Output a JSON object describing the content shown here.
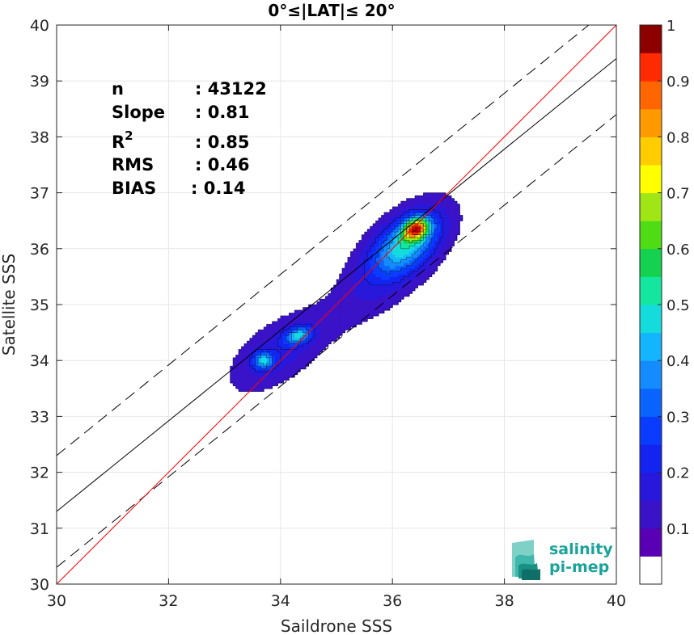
{
  "chart_data": {
    "type": "heatmap",
    "title": "0°≤|LAT|≤ 20°",
    "xlabel": "Saildrone SSS",
    "ylabel": "Satellite SSS",
    "xlim": [
      30,
      40
    ],
    "ylim": [
      30,
      40
    ],
    "xticks": [
      "30",
      "32",
      "34",
      "36",
      "38",
      "40"
    ],
    "yticks": [
      "30",
      "31",
      "32",
      "33",
      "34",
      "35",
      "36",
      "37",
      "38",
      "39",
      "40"
    ],
    "grid": true,
    "stats": {
      "n_label": "n",
      "n_value": ": 43122",
      "slope_label": "Slope",
      "slope_value": ": 0.81",
      "r2_label": "R",
      "r2_sup": "2",
      "r2_value": ": 0.85",
      "rms_label": "RMS",
      "rms_value": ": 0.46",
      "bias_label": "BIAS",
      "bias_value": ": 0.14"
    },
    "lines": {
      "identity": {
        "slope": 1.0,
        "intercept": 0.0,
        "color": "#ff0000"
      },
      "fit": {
        "slope": 0.81,
        "intercept": 7.0,
        "color": "#000000"
      },
      "upper_bound": {
        "slope": 0.81,
        "intercept": 8.0,
        "color": "#000000",
        "style": "dashed"
      },
      "lower_bound": {
        "slope": 0.81,
        "intercept": 6.0,
        "color": "#000000",
        "style": "dashed"
      }
    },
    "density_blobs": [
      {
        "cx": 36.2,
        "cy": 35.9,
        "rx": 0.72,
        "ry": 1.25,
        "angle_deg": 40
      },
      {
        "cx": 34.0,
        "cy": 34.15,
        "rx": 0.55,
        "ry": 0.95,
        "angle_deg": 40
      }
    ],
    "density_peaks": [
      {
        "x": 36.4,
        "y": 36.35,
        "level": 1.0
      },
      {
        "x": 34.35,
        "y": 34.45,
        "level": 0.45
      },
      {
        "x": 33.7,
        "y": 34.0,
        "level": 0.45
      }
    ],
    "colorbar": {
      "range": [
        0,
        1
      ],
      "ticks": [
        "0.1",
        "0.2",
        "0.3",
        "0.4",
        "0.5",
        "0.6",
        "0.7",
        "0.8",
        "0.9",
        "1"
      ],
      "levels": [
        0.05,
        0.1,
        0.15,
        0.2,
        0.25,
        0.3,
        0.35,
        0.4,
        0.45,
        0.5,
        0.55,
        0.6,
        0.65,
        0.7,
        0.75,
        0.8,
        0.85,
        0.9,
        0.95
      ],
      "colors": [
        "#5a00b4",
        "#3a12c8",
        "#2818dc",
        "#1424f0",
        "#0a3cff",
        "#0a64ff",
        "#148cff",
        "#14b4ff",
        "#14dcdc",
        "#14e6a0",
        "#14d250",
        "#50dc14",
        "#a0e614",
        "#ffff00",
        "#ffcc00",
        "#ff9900",
        "#ff6600",
        "#ff2a00",
        "#e00000",
        "#8c0000"
      ]
    }
  },
  "logo": {
    "line1": "salinity",
    "line2": "pi-mep",
    "color": "#1aa39a"
  }
}
